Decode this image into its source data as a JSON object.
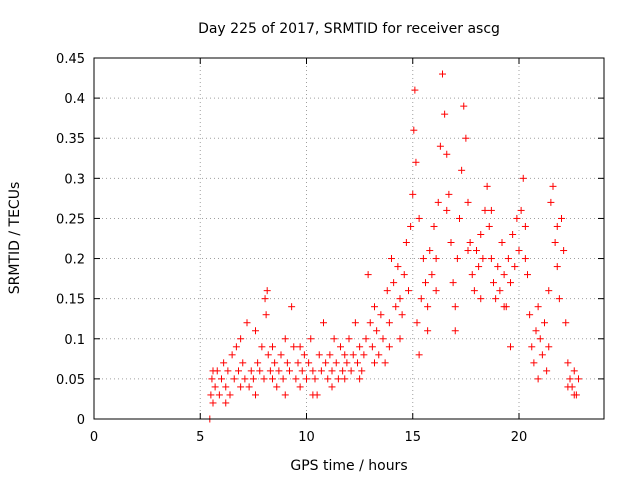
{
  "chart_data": {
    "type": "scatter",
    "title": "Day 225 of 2017, SRMTID for receiver ascg",
    "xlabel": "GPS time / hours",
    "ylabel": "SRMTID / TECUs",
    "xlim": [
      0,
      24
    ],
    "ylim": [
      0,
      0.45
    ],
    "xticks": [
      {
        "value": 0,
        "label": "0"
      },
      {
        "value": 5,
        "label": "5"
      },
      {
        "value": 10,
        "label": "10"
      },
      {
        "value": 15,
        "label": "15"
      },
      {
        "value": 20,
        "label": "20"
      }
    ],
    "yticks": [
      {
        "value": 0,
        "label": "0"
      },
      {
        "value": 0.05,
        "label": "0.05"
      },
      {
        "value": 0.1,
        "label": "0.1"
      },
      {
        "value": 0.15,
        "label": "0.15"
      },
      {
        "value": 0.2,
        "label": "0.2"
      },
      {
        "value": 0.25,
        "label": "0.25"
      },
      {
        "value": 0.3,
        "label": "0.3"
      },
      {
        "value": 0.35,
        "label": "0.35"
      },
      {
        "value": 0.4,
        "label": "0.4"
      },
      {
        "value": 0.45,
        "label": "0.45"
      }
    ],
    "grid": true,
    "marker": "+",
    "series": [
      {
        "name": "SRMTID",
        "color": "#ff0000",
        "points": [
          [
            5.45,
            0.0
          ],
          [
            5.5,
            0.03
          ],
          [
            5.55,
            0.05
          ],
          [
            5.6,
            0.02
          ],
          [
            5.7,
            0.04
          ],
          [
            5.8,
            0.06
          ],
          [
            5.9,
            0.03
          ],
          [
            6.0,
            0.05
          ],
          [
            6.1,
            0.07
          ],
          [
            6.2,
            0.04
          ],
          [
            6.3,
            0.06
          ],
          [
            6.4,
            0.03
          ],
          [
            6.5,
            0.08
          ],
          [
            6.6,
            0.05
          ],
          [
            6.7,
            0.09
          ],
          [
            6.8,
            0.06
          ],
          [
            6.9,
            0.1
          ],
          [
            7.0,
            0.07
          ],
          [
            7.1,
            0.05
          ],
          [
            7.2,
            0.12
          ],
          [
            7.3,
            0.04
          ],
          [
            7.4,
            0.06
          ],
          [
            7.5,
            0.05
          ],
          [
            7.6,
            0.11
          ],
          [
            7.7,
            0.07
          ],
          [
            7.8,
            0.06
          ],
          [
            7.9,
            0.09
          ],
          [
            8.0,
            0.05
          ],
          [
            8.05,
            0.15
          ],
          [
            8.1,
            0.13
          ],
          [
            8.15,
            0.16
          ],
          [
            8.2,
            0.08
          ],
          [
            8.3,
            0.06
          ],
          [
            8.4,
            0.05
          ],
          [
            8.5,
            0.07
          ],
          [
            8.6,
            0.04
          ],
          [
            8.7,
            0.06
          ],
          [
            8.8,
            0.08
          ],
          [
            8.9,
            0.05
          ],
          [
            9.0,
            0.03
          ],
          [
            9.1,
            0.07
          ],
          [
            9.2,
            0.06
          ],
          [
            9.3,
            0.14
          ],
          [
            9.4,
            0.09
          ],
          [
            9.5,
            0.05
          ],
          [
            9.6,
            0.07
          ],
          [
            9.7,
            0.04
          ],
          [
            9.8,
            0.06
          ],
          [
            9.9,
            0.08
          ],
          [
            10.0,
            0.05
          ],
          [
            10.1,
            0.07
          ],
          [
            10.2,
            0.1
          ],
          [
            10.3,
            0.06
          ],
          [
            10.4,
            0.05
          ],
          [
            10.5,
            0.03
          ],
          [
            10.6,
            0.08
          ],
          [
            10.7,
            0.06
          ],
          [
            10.8,
            0.12
          ],
          [
            10.9,
            0.07
          ],
          [
            11.0,
            0.05
          ],
          [
            11.1,
            0.08
          ],
          [
            11.2,
            0.06
          ],
          [
            11.3,
            0.1
          ],
          [
            11.4,
            0.07
          ],
          [
            11.5,
            0.05
          ],
          [
            11.6,
            0.09
          ],
          [
            11.7,
            0.06
          ],
          [
            11.8,
            0.08
          ],
          [
            11.9,
            0.07
          ],
          [
            12.0,
            0.1
          ],
          [
            12.1,
            0.06
          ],
          [
            12.2,
            0.08
          ],
          [
            12.3,
            0.12
          ],
          [
            12.4,
            0.07
          ],
          [
            12.5,
            0.09
          ],
          [
            12.6,
            0.06
          ],
          [
            12.7,
            0.08
          ],
          [
            12.8,
            0.1
          ],
          [
            12.9,
            0.18
          ],
          [
            13.0,
            0.12
          ],
          [
            13.1,
            0.09
          ],
          [
            13.2,
            0.14
          ],
          [
            13.3,
            0.11
          ],
          [
            13.4,
            0.08
          ],
          [
            13.5,
            0.13
          ],
          [
            13.6,
            0.1
          ],
          [
            13.7,
            0.07
          ],
          [
            13.8,
            0.16
          ],
          [
            13.9,
            0.12
          ],
          [
            14.0,
            0.2
          ],
          [
            14.1,
            0.17
          ],
          [
            14.2,
            0.14
          ],
          [
            14.3,
            0.19
          ],
          [
            14.4,
            0.15
          ],
          [
            14.5,
            0.13
          ],
          [
            14.6,
            0.18
          ],
          [
            14.7,
            0.22
          ],
          [
            14.8,
            0.16
          ],
          [
            14.9,
            0.24
          ],
          [
            15.0,
            0.28
          ],
          [
            15.05,
            0.36
          ],
          [
            15.1,
            0.41
          ],
          [
            15.15,
            0.32
          ],
          [
            15.2,
            0.12
          ],
          [
            15.3,
            0.08
          ],
          [
            15.4,
            0.15
          ],
          [
            15.5,
            0.2
          ],
          [
            15.6,
            0.17
          ],
          [
            15.7,
            0.14
          ],
          [
            15.8,
            0.21
          ],
          [
            15.9,
            0.18
          ],
          [
            16.0,
            0.24
          ],
          [
            16.1,
            0.2
          ],
          [
            16.2,
            0.27
          ],
          [
            16.3,
            0.34
          ],
          [
            16.4,
            0.43
          ],
          [
            16.5,
            0.38
          ],
          [
            16.6,
            0.33
          ],
          [
            16.7,
            0.28
          ],
          [
            16.8,
            0.22
          ],
          [
            16.9,
            0.17
          ],
          [
            17.0,
            0.14
          ],
          [
            17.1,
            0.2
          ],
          [
            17.2,
            0.25
          ],
          [
            17.3,
            0.31
          ],
          [
            17.4,
            0.39
          ],
          [
            17.5,
            0.35
          ],
          [
            17.6,
            0.27
          ],
          [
            17.7,
            0.22
          ],
          [
            17.8,
            0.18
          ],
          [
            17.9,
            0.16
          ],
          [
            18.0,
            0.21
          ],
          [
            18.1,
            0.19
          ],
          [
            18.2,
            0.23
          ],
          [
            18.3,
            0.2
          ],
          [
            18.4,
            0.26
          ],
          [
            18.5,
            0.29
          ],
          [
            18.6,
            0.24
          ],
          [
            18.7,
            0.2
          ],
          [
            18.8,
            0.17
          ],
          [
            18.9,
            0.15
          ],
          [
            19.0,
            0.19
          ],
          [
            19.1,
            0.16
          ],
          [
            19.2,
            0.22
          ],
          [
            19.3,
            0.18
          ],
          [
            19.4,
            0.14
          ],
          [
            19.5,
            0.2
          ],
          [
            19.6,
            0.17
          ],
          [
            19.7,
            0.23
          ],
          [
            19.8,
            0.19
          ],
          [
            19.9,
            0.25
          ],
          [
            20.0,
            0.21
          ],
          [
            20.1,
            0.26
          ],
          [
            20.2,
            0.3
          ],
          [
            20.3,
            0.24
          ],
          [
            20.4,
            0.18
          ],
          [
            20.5,
            0.13
          ],
          [
            20.6,
            0.09
          ],
          [
            20.7,
            0.07
          ],
          [
            20.8,
            0.11
          ],
          [
            20.9,
            0.14
          ],
          [
            21.0,
            0.1
          ],
          [
            21.1,
            0.08
          ],
          [
            21.2,
            0.12
          ],
          [
            21.3,
            0.06
          ],
          [
            21.4,
            0.09
          ],
          [
            21.5,
            0.27
          ],
          [
            21.6,
            0.29
          ],
          [
            21.7,
            0.22
          ],
          [
            21.8,
            0.19
          ],
          [
            21.9,
            0.15
          ],
          [
            22.0,
            0.25
          ],
          [
            22.1,
            0.21
          ],
          [
            22.2,
            0.12
          ],
          [
            22.3,
            0.07
          ],
          [
            22.4,
            0.05
          ],
          [
            22.5,
            0.04
          ],
          [
            22.6,
            0.06
          ],
          [
            22.7,
            0.03
          ],
          [
            22.8,
            0.05
          ],
          [
            5.6,
            0.06
          ],
          [
            6.2,
            0.02
          ],
          [
            6.9,
            0.04
          ],
          [
            7.6,
            0.03
          ],
          [
            8.4,
            0.09
          ],
          [
            9.0,
            0.1
          ],
          [
            9.7,
            0.09
          ],
          [
            10.3,
            0.03
          ],
          [
            11.2,
            0.04
          ],
          [
            11.8,
            0.05
          ],
          [
            12.5,
            0.05
          ],
          [
            13.2,
            0.07
          ],
          [
            13.9,
            0.09
          ],
          [
            14.4,
            0.1
          ],
          [
            15.3,
            0.25
          ],
          [
            15.7,
            0.11
          ],
          [
            16.1,
            0.16
          ],
          [
            16.6,
            0.26
          ],
          [
            17.0,
            0.11
          ],
          [
            17.6,
            0.21
          ],
          [
            18.2,
            0.15
          ],
          [
            18.7,
            0.26
          ],
          [
            19.3,
            0.14
          ],
          [
            19.6,
            0.09
          ],
          [
            20.3,
            0.2
          ],
          [
            20.9,
            0.05
          ],
          [
            21.4,
            0.16
          ],
          [
            21.8,
            0.24
          ],
          [
            22.3,
            0.04
          ],
          [
            22.6,
            0.03
          ]
        ]
      }
    ]
  }
}
